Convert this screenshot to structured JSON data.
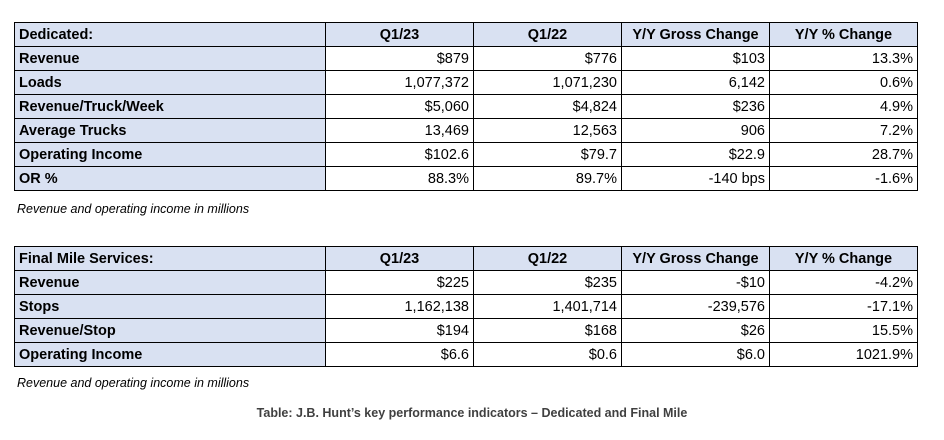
{
  "tables": [
    {
      "headers": [
        "Dedicated:",
        "Q1/23",
        "Q1/22",
        "Y/Y Gross Change",
        "Y/Y % Change"
      ],
      "rows": [
        [
          "Revenue",
          "$879",
          "$776",
          "$103",
          "13.3%"
        ],
        [
          "Loads",
          "1,077,372",
          "1,071,230",
          "6,142",
          "0.6%"
        ],
        [
          "Revenue/Truck/Week",
          "$5,060",
          "$4,824",
          "$236",
          "4.9%"
        ],
        [
          "Average Trucks",
          "13,469",
          "12,563",
          "906",
          "7.2%"
        ],
        [
          "Operating Income",
          "$102.6",
          "$79.7",
          "$22.9",
          "28.7%"
        ],
        [
          "OR %",
          "88.3%",
          "89.7%",
          "-140 bps",
          "-1.6%"
        ]
      ],
      "note": "Revenue and operating income in millions"
    },
    {
      "headers": [
        "Final Mile Services:",
        "Q1/23",
        "Q1/22",
        "Y/Y Gross Change",
        "Y/Y % Change"
      ],
      "rows": [
        [
          "Revenue",
          "$225",
          "$235",
          "-$10",
          "-4.2%"
        ],
        [
          "Stops",
          "1,162,138",
          "1,401,714",
          "-239,576",
          "-17.1%"
        ],
        [
          "Revenue/Stop",
          "$194",
          "$168",
          "$26",
          "15.5%"
        ],
        [
          "Operating Income",
          "$6.6",
          "$0.6",
          "$6.0",
          "1021.9%"
        ]
      ],
      "note": "Revenue and operating income in millions"
    }
  ],
  "caption": "Table: J.B. Hunt’s key performance indicators – Dedicated and Final Mile"
}
